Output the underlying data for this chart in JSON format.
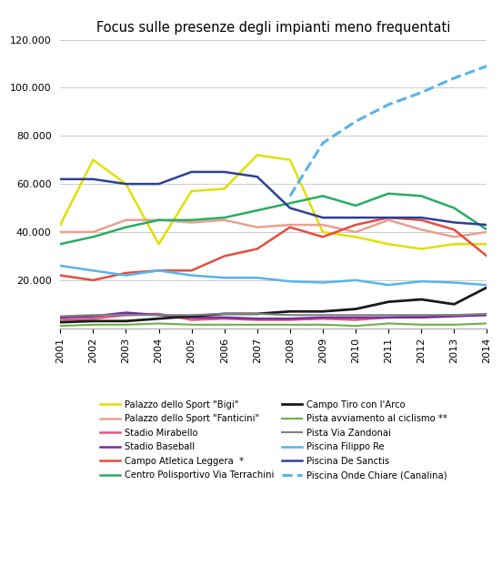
{
  "title": "Focus sulle presenze degli impianti meno frequentati",
  "years": [
    2001,
    2002,
    2003,
    2004,
    2005,
    2006,
    2007,
    2008,
    2009,
    2010,
    2011,
    2012,
    2013,
    2014
  ],
  "ylim": [
    0,
    120000
  ],
  "yticks": [
    20000,
    40000,
    60000,
    80000,
    100000,
    120000
  ],
  "series": [
    {
      "name": "Palazzo dello Sport \"Bigi\"",
      "color": "#e0e000",
      "linestyle": "-",
      "linewidth": 1.8,
      "values": [
        43000,
        70000,
        60000,
        35000,
        57000,
        58000,
        72000,
        70000,
        40000,
        38000,
        35000,
        33000,
        35000,
        35000
      ]
    },
    {
      "name": "Palazzo dello Sport \"Fanticini\"",
      "color": "#e8a090",
      "linestyle": "-",
      "linewidth": 1.8,
      "values": [
        40000,
        40000,
        45000,
        45000,
        44000,
        45000,
        42000,
        43000,
        43000,
        40000,
        45000,
        41000,
        38000,
        40000
      ]
    },
    {
      "name": "Stadio Mirabello",
      "color": "#e75480",
      "linestyle": "-",
      "linewidth": 1.8,
      "values": [
        3500,
        4000,
        5500,
        6000,
        3500,
        4000,
        3500,
        3500,
        4000,
        3500,
        4500,
        5000,
        5500,
        5500
      ]
    },
    {
      "name": "Stadio Baseball",
      "color": "#7030a0",
      "linestyle": "-",
      "linewidth": 1.8,
      "values": [
        4500,
        5000,
        6500,
        5500,
        4500,
        4500,
        4000,
        4000,
        4500,
        4500,
        4500,
        4500,
        5000,
        5500
      ]
    },
    {
      "name": "Campo Atletica Leggera  *",
      "color": "#e74c3c",
      "linestyle": "-",
      "linewidth": 1.8,
      "values": [
        22000,
        20000,
        23000,
        24000,
        24000,
        30000,
        33000,
        42000,
        38000,
        43000,
        46000,
        45000,
        41000,
        30000
      ]
    },
    {
      "name": "Centro Polisportivo Via Terrachini",
      "color": "#27ae60",
      "linestyle": "-",
      "linewidth": 1.8,
      "values": [
        35000,
        38000,
        42000,
        45000,
        45000,
        46000,
        49000,
        52000,
        55000,
        51000,
        56000,
        55000,
        50000,
        41000
      ]
    },
    {
      "name": "Campo Tiro con l'Arco",
      "color": "#1a1a1a",
      "linestyle": "-",
      "linewidth": 2.0,
      "values": [
        2500,
        3000,
        3000,
        4000,
        5000,
        6000,
        6000,
        7000,
        7000,
        8000,
        11000,
        12000,
        10000,
        17000
      ]
    },
    {
      "name": "Pista avviamento al ciclismo **",
      "color": "#70ad47",
      "linestyle": "-",
      "linewidth": 1.5,
      "values": [
        1000,
        1500,
        1500,
        2000,
        1500,
        1500,
        1500,
        1500,
        1500,
        1000,
        2000,
        1500,
        1500,
        2000
      ]
    },
    {
      "name": "Pista Via Zandonai",
      "color": "#808080",
      "linestyle": "-",
      "linewidth": 1.5,
      "values": [
        5000,
        5500,
        5500,
        5500,
        5500,
        6000,
        6000,
        5500,
        5500,
        5500,
        5500,
        5500,
        5500,
        6000
      ]
    },
    {
      "name": "Piscina Filippo Re",
      "color": "#56b4e9",
      "linestyle": "-",
      "linewidth": 1.8,
      "values": [
        26000,
        24000,
        22000,
        24000,
        22000,
        21000,
        21000,
        19500,
        19000,
        20000,
        18000,
        19500,
        19000,
        18000
      ]
    },
    {
      "name": "Piscina De Sanctis",
      "color": "#2e4099",
      "linestyle": "-",
      "linewidth": 1.8,
      "values": [
        62000,
        62000,
        60000,
        60000,
        65000,
        65000,
        63000,
        50000,
        46000,
        46000,
        46000,
        46000,
        44000,
        43000
      ]
    },
    {
      "name": "Piscina Onde Chiare (Canalina)",
      "color": "#56b4e9",
      "linestyle": "--",
      "linewidth": 2.2,
      "values": [
        null,
        null,
        null,
        null,
        null,
        null,
        null,
        55000,
        77000,
        86000,
        93000,
        98000,
        104000,
        109000
      ]
    }
  ],
  "legend_order": [
    "Palazzo dello Sport \"Bigi\"",
    "Palazzo dello Sport \"Fanticini\"",
    "Stadio Mirabello",
    "Stadio Baseball",
    "Campo Atletica Leggera  *",
    "Centro Polisportivo Via Terrachini",
    "Campo Tiro con l'Arco",
    "Pista avviamento al ciclismo **",
    "Pista Via Zandonai",
    "Piscina Filippo Re",
    "Piscina De Sanctis",
    "Piscina Onde Chiare (Canalina)"
  ]
}
